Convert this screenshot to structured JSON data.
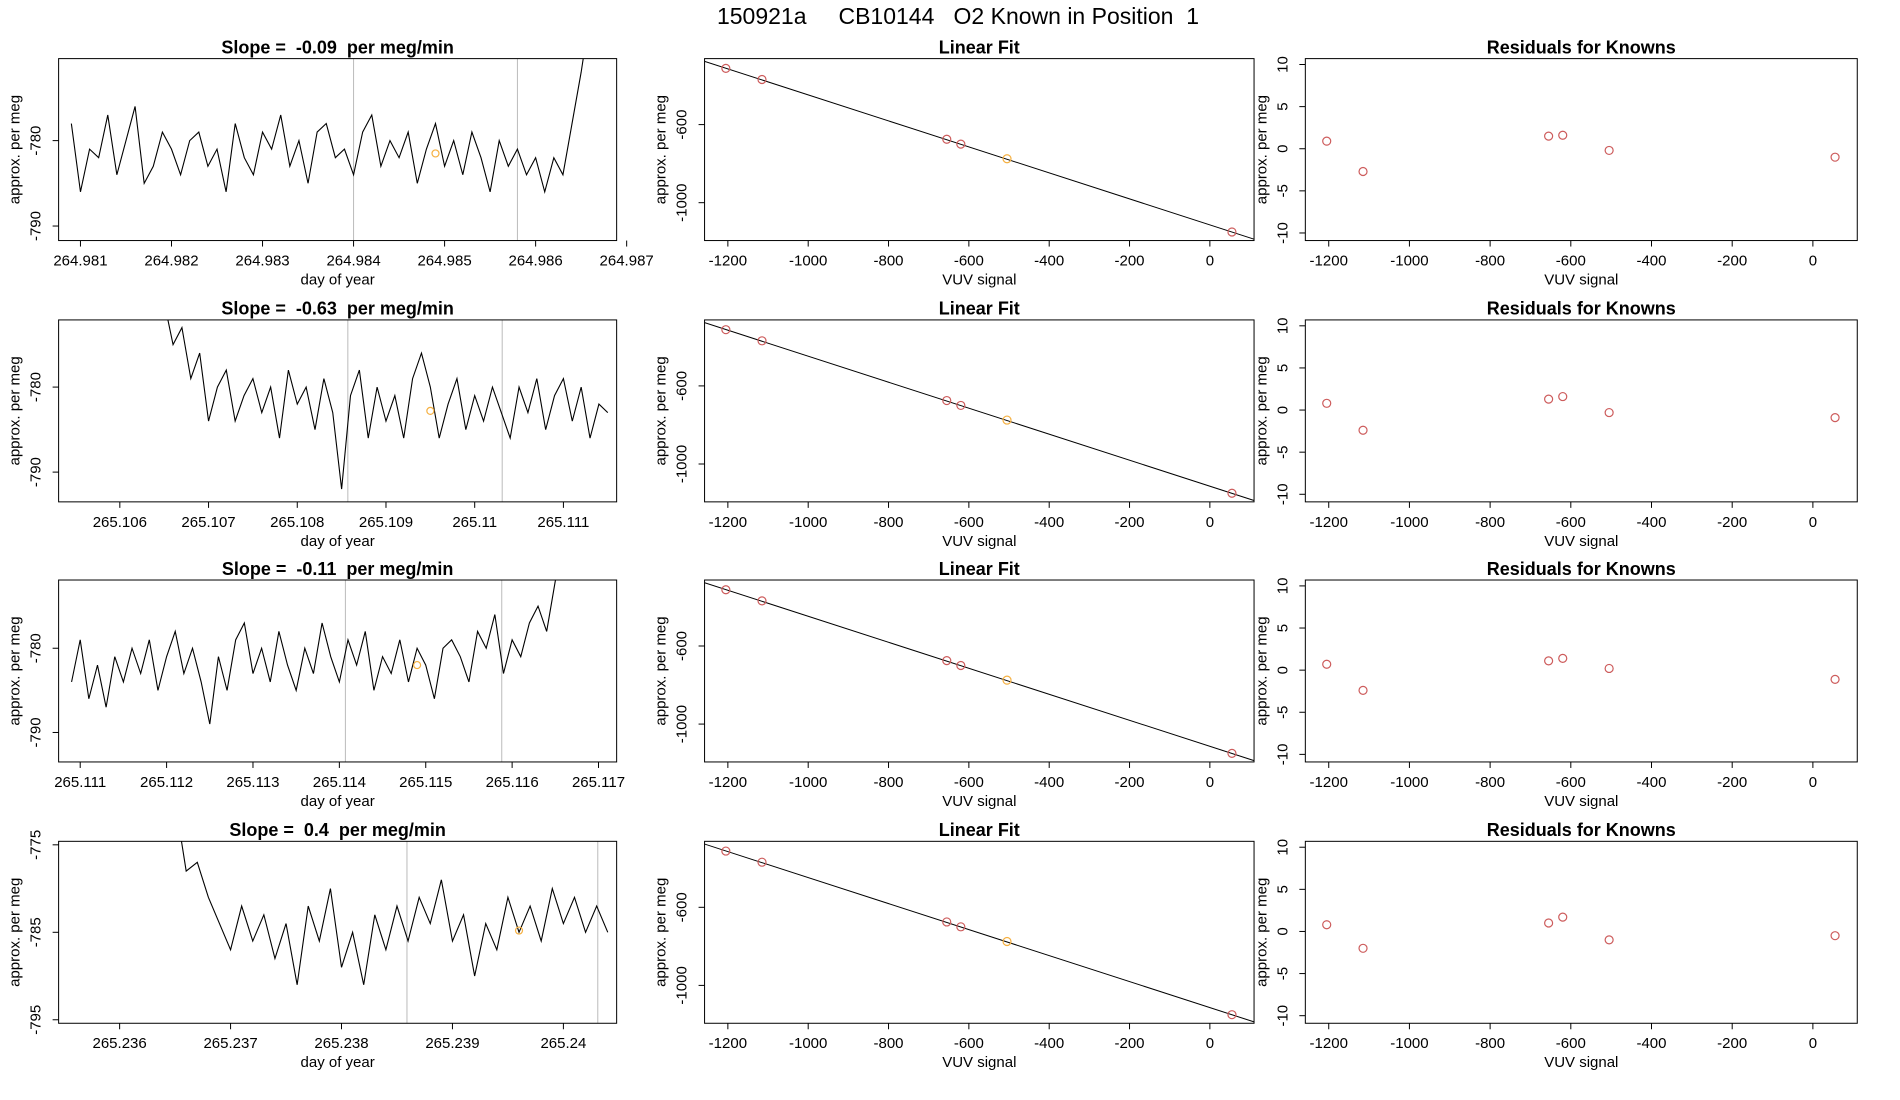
{
  "title": "150921a     CB10144   O2 Known in Position  1",
  "chart_data": [
    {
      "type": "line",
      "title": "Slope =  -0.09  per meg/min",
      "xlabel": "day of year",
      "ylabel": "approx. per meg",
      "color": "#000000",
      "vline_color": "#bbbbbb",
      "highlight_color": "#f5b041",
      "xlim": [
        264.98076,
        264.98689
      ],
      "ylim": [
        -791.7,
        -770.4
      ],
      "xticks": [
        264.981,
        264.982,
        264.983,
        264.984,
        264.985,
        264.986,
        264.987
      ],
      "yticks": [
        -790,
        -780
      ],
      "x": [
        264.9809,
        264.981,
        264.9811,
        264.9812,
        264.9813,
        264.9814,
        264.9815,
        264.9816,
        264.9817,
        264.9818,
        264.9819,
        264.982,
        264.9821,
        264.9822,
        264.9823,
        264.9824,
        264.9825,
        264.9826,
        264.9827,
        264.9828,
        264.9829,
        264.983,
        264.9831,
        264.9832,
        264.9833,
        264.9834,
        264.9835,
        264.9836,
        264.9837,
        264.9838,
        264.9839,
        264.984,
        264.9841,
        264.9842,
        264.9843,
        264.9844,
        264.9845,
        264.9846,
        264.9847,
        264.9848,
        264.9849,
        264.985,
        264.9851,
        264.9852,
        264.9853,
        264.9854,
        264.9855,
        264.9856,
        264.9857,
        264.9858,
        264.9859,
        264.986,
        264.9861,
        264.9862,
        264.9863,
        264.9864,
        264.9865,
        264.9866
      ],
      "values": [
        -778,
        -786,
        -781,
        -782,
        -777,
        -784,
        -780,
        -776,
        -785,
        -783,
        -779,
        -781,
        -784,
        -780,
        -779,
        -783,
        -781,
        -786,
        -778,
        -782,
        -784,
        -779,
        -781,
        -777,
        -783,
        -780,
        -785,
        -779,
        -778,
        -782,
        -781,
        -784,
        -779,
        -777,
        -783,
        -780,
        -782,
        -779,
        -785,
        -781,
        -778,
        -783,
        -780,
        -784,
        -779,
        -782,
        -786,
        -780,
        -783,
        -781,
        -784,
        -782,
        -786,
        -782,
        -784,
        -778,
        -772,
        -765
      ],
      "vlines": [
        264.984,
        264.9858
      ],
      "highlight": {
        "x": 264.9849,
        "y": -781.5
      }
    },
    {
      "type": "scatter",
      "title": "Linear Fit",
      "xlabel": "VUV signal",
      "ylabel": "approx. per meg",
      "xlim": [
        -1258,
        110
      ],
      "ylim": [
        -1194,
        -262
      ],
      "xticks": [
        -1200,
        -1000,
        -800,
        -600,
        -400,
        -200,
        0
      ],
      "yticks": [
        -1000,
        -600
      ],
      "x": [
        -1205,
        -1115,
        -655,
        -620,
        -505,
        55
      ],
      "values": [
        -312,
        -369,
        -675,
        -700,
        -775,
        -1150
      ],
      "colors": [
        "#cd5c5c",
        "#cd5c5c",
        "#cd5c5c",
        "#cd5c5c",
        "#f5b041",
        "#cd5c5c"
      ],
      "fit": {
        "color": "#000000",
        "x": [
          -1258,
          110
        ],
        "values": [
          -276,
          -1187
        ]
      }
    },
    {
      "type": "scatter",
      "title": "Residuals for Knowns",
      "xlabel": "VUV signal",
      "ylabel": "approx. per meg",
      "xlim": [
        -1258,
        110
      ],
      "ylim": [
        -10.9,
        10.7
      ],
      "xticks": [
        -1200,
        -1000,
        -800,
        -600,
        -400,
        -200,
        0
      ],
      "yticks": [
        -10,
        -5,
        0,
        5,
        10
      ],
      "x": [
        -1205,
        -1115,
        -655,
        -620,
        -505,
        55
      ],
      "values": [
        0.9,
        -2.7,
        1.5,
        1.6,
        -0.2,
        -1.0
      ],
      "colors": [
        "#cd5c5c",
        "#cd5c5c",
        "#cd5c5c",
        "#cd5c5c",
        "#cd5c5c",
        "#cd5c5c"
      ]
    },
    {
      "type": "line",
      "title": "Slope =  -0.63  per meg/min",
      "xlabel": "day of year",
      "ylabel": "approx. per meg",
      "color": "#000000",
      "vline_color": "#bbbbbb",
      "highlight_color": "#f5b041",
      "xlim": [
        265.10531,
        265.1116
      ],
      "ylim": [
        -793.5,
        -772.1
      ],
      "xticks": [
        265.106,
        265.107,
        265.108,
        265.109,
        265.11,
        265.111
      ],
      "yticks": [
        -790,
        -780
      ],
      "x": [
        265.1065,
        265.1066,
        265.1067,
        265.1068,
        265.1069,
        265.107,
        265.1071,
        265.1072,
        265.1073,
        265.1074,
        265.1075,
        265.1076,
        265.1077,
        265.1078,
        265.1079,
        265.108,
        265.1081,
        265.1082,
        265.1083,
        265.1084,
        265.1085,
        265.1086,
        265.1087,
        265.1088,
        265.1089,
        265.109,
        265.1091,
        265.1092,
        265.1093,
        265.1094,
        265.1095,
        265.1096,
        265.1097,
        265.1098,
        265.1099,
        265.11,
        265.1101,
        265.1102,
        265.1103,
        265.1104,
        265.1105,
        265.1106,
        265.1107,
        265.1108,
        265.1109,
        265.111,
        265.1111,
        265.1112,
        265.1113,
        265.1114,
        265.1115
      ],
      "values": [
        -770,
        -775,
        -773,
        -779,
        -776,
        -784,
        -780,
        -778,
        -784,
        -781,
        -779,
        -783,
        -780,
        -786,
        -778,
        -782,
        -780,
        -785,
        -779,
        -783,
        -792,
        -781,
        -778,
        -786,
        -780,
        -784,
        -781,
        -786,
        -779,
        -776,
        -780,
        -786,
        -782,
        -779,
        -785,
        -781,
        -784,
        -780,
        -783,
        -786,
        -780,
        -783,
        -779,
        -785,
        -781,
        -779,
        -784,
        -780,
        -786,
        -782,
        -783
      ],
      "vlines": [
        265.10857,
        265.11031
      ],
      "highlight": {
        "x": 265.1095,
        "y": -782.8
      }
    },
    {
      "type": "scatter",
      "title": "Linear Fit",
      "xlabel": "VUV signal",
      "ylabel": "approx. per meg",
      "xlim": [
        -1258,
        110
      ],
      "ylim": [
        -1194,
        -262
      ],
      "xticks": [
        -1200,
        -1000,
        -800,
        -600,
        -400,
        -200,
        0
      ],
      "yticks": [
        -1000,
        -600
      ],
      "x": [
        -1205,
        -1115,
        -655,
        -620,
        -505,
        55
      ],
      "values": [
        -312,
        -369,
        -675,
        -700,
        -775,
        -1150
      ],
      "colors": [
        "#cd5c5c",
        "#cd5c5c",
        "#cd5c5c",
        "#cd5c5c",
        "#f5b041",
        "#cd5c5c"
      ],
      "fit": {
        "color": "#000000",
        "x": [
          -1258,
          110
        ],
        "values": [
          -276,
          -1187
        ]
      }
    },
    {
      "type": "scatter",
      "title": "Residuals for Knowns",
      "xlabel": "VUV signal",
      "ylabel": "approx. per meg",
      "xlim": [
        -1258,
        110
      ],
      "ylim": [
        -10.9,
        10.7
      ],
      "xticks": [
        -1200,
        -1000,
        -800,
        -600,
        -400,
        -200,
        0
      ],
      "yticks": [
        -10,
        -5,
        0,
        5,
        10
      ],
      "x": [
        -1205,
        -1115,
        -655,
        -620,
        -505,
        55
      ],
      "values": [
        0.8,
        -2.4,
        1.3,
        1.6,
        -0.3,
        -0.9
      ],
      "colors": [
        "#cd5c5c",
        "#cd5c5c",
        "#cd5c5c",
        "#cd5c5c",
        "#cd5c5c",
        "#cd5c5c"
      ]
    },
    {
      "type": "line",
      "title": "Slope =  -0.11  per meg/min",
      "xlabel": "day of year",
      "ylabel": "approx. per meg",
      "color": "#000000",
      "vline_color": "#bbbbbb",
      "highlight_color": "#f5b041",
      "xlim": [
        265.11075,
        265.11721
      ],
      "ylim": [
        -793.5,
        -771.9
      ],
      "xticks": [
        265.111,
        265.112,
        265.113,
        265.114,
        265.115,
        265.116,
        265.117
      ],
      "yticks": [
        -790,
        -780
      ],
      "x": [
        265.1109,
        265.111,
        265.1111,
        265.1112,
        265.1113,
        265.1114,
        265.1115,
        265.1116,
        265.1117,
        265.1118,
        265.1119,
        265.112,
        265.1121,
        265.1122,
        265.1123,
        265.1124,
        265.1125,
        265.1126,
        265.1127,
        265.1128,
        265.1129,
        265.113,
        265.1131,
        265.1132,
        265.1133,
        265.1134,
        265.1135,
        265.1136,
        265.1137,
        265.1138,
        265.1139,
        265.114,
        265.1141,
        265.1142,
        265.1143,
        265.1144,
        265.1145,
        265.1146,
        265.1147,
        265.1148,
        265.1149,
        265.115,
        265.1151,
        265.1152,
        265.1153,
        265.1154,
        265.1155,
        265.1156,
        265.1157,
        265.1158,
        265.1159,
        265.116,
        265.1161,
        265.1162,
        265.1163,
        265.1164,
        265.1165,
        265.1166
      ],
      "values": [
        -784,
        -779,
        -786,
        -782,
        -787,
        -781,
        -784,
        -780,
        -783,
        -779,
        -785,
        -781,
        -778,
        -783,
        -780,
        -784,
        -789,
        -781,
        -785,
        -779,
        -777,
        -783,
        -780,
        -784,
        -778,
        -782,
        -785,
        -780,
        -783,
        -777,
        -781,
        -784,
        -779,
        -782,
        -778,
        -785,
        -781,
        -783,
        -779,
        -784,
        -780,
        -782,
        -786,
        -780,
        -779,
        -781,
        -784,
        -778,
        -780,
        -776,
        -783,
        -779,
        -781,
        -777,
        -775,
        -778,
        -772,
        -765
      ],
      "vlines": [
        265.11407,
        265.11588
      ],
      "highlight": {
        "x": 265.1149,
        "y": -782
      }
    },
    {
      "type": "scatter",
      "title": "Linear Fit",
      "xlabel": "VUV signal",
      "ylabel": "approx. per meg",
      "xlim": [
        -1258,
        110
      ],
      "ylim": [
        -1194,
        -262
      ],
      "xticks": [
        -1200,
        -1000,
        -800,
        -600,
        -400,
        -200,
        0
      ],
      "yticks": [
        -1000,
        -600
      ],
      "x": [
        -1205,
        -1115,
        -655,
        -620,
        -505,
        55
      ],
      "values": [
        -312,
        -369,
        -675,
        -700,
        -775,
        -1150
      ],
      "colors": [
        "#cd5c5c",
        "#cd5c5c",
        "#cd5c5c",
        "#cd5c5c",
        "#f5b041",
        "#cd5c5c"
      ],
      "fit": {
        "color": "#000000",
        "x": [
          -1258,
          110
        ],
        "values": [
          -276,
          -1187
        ]
      }
    },
    {
      "type": "scatter",
      "title": "Residuals for Knowns",
      "xlabel": "VUV signal",
      "ylabel": "approx. per meg",
      "xlim": [
        -1258,
        110
      ],
      "ylim": [
        -10.9,
        10.7
      ],
      "xticks": [
        -1200,
        -1000,
        -800,
        -600,
        -400,
        -200,
        0
      ],
      "yticks": [
        -10,
        -5,
        0,
        5,
        10
      ],
      "x": [
        -1205,
        -1115,
        -655,
        -620,
        -505,
        55
      ],
      "values": [
        0.7,
        -2.4,
        1.1,
        1.4,
        0.2,
        -1.1
      ],
      "colors": [
        "#cd5c5c",
        "#cd5c5c",
        "#cd5c5c",
        "#cd5c5c",
        "#cd5c5c",
        "#cd5c5c"
      ]
    },
    {
      "type": "line",
      "title": "Slope =  0.4  per meg/min",
      "xlabel": "day of year",
      "ylabel": "approx. per meg",
      "color": "#000000",
      "vline_color": "#bbbbbb",
      "highlight_color": "#f5b041",
      "xlim": [
        265.23545,
        265.24048
      ],
      "ylim": [
        -795.4,
        -774.6
      ],
      "xticks": [
        265.236,
        265.237,
        265.238,
        265.239,
        265.24
      ],
      "yticks": [
        -795,
        -785,
        -775
      ],
      "x": [
        265.2365,
        265.2366,
        265.2367,
        265.2368,
        265.2369,
        265.237,
        265.2371,
        265.2372,
        265.2373,
        265.2374,
        265.2375,
        265.2376,
        265.2377,
        265.2378,
        265.2379,
        265.238,
        265.2381,
        265.2382,
        265.2383,
        265.2384,
        265.2385,
        265.2386,
        265.2387,
        265.2388,
        265.2389,
        265.239,
        265.2391,
        265.2392,
        265.2393,
        265.2394,
        265.2395,
        265.2396,
        265.2397,
        265.2398,
        265.2399,
        265.24,
        265.2401,
        265.2402,
        265.2403,
        265.2404
      ],
      "values": [
        -770,
        -778,
        -777,
        -781,
        -784,
        -787,
        -782,
        -786,
        -783,
        -788,
        -784,
        -791,
        -782,
        -786,
        -780,
        -789,
        -785,
        -791,
        -783,
        -787,
        -782,
        -786,
        -781,
        -784,
        -779,
        -786,
        -783,
        -790,
        -784,
        -787,
        -781,
        -785,
        -782,
        -786,
        -780,
        -784,
        -781,
        -785,
        -782,
        -785
      ],
      "vlines": [
        265.23859,
        265.24031
      ],
      "highlight": {
        "x": 265.2396,
        "y": -784.8
      }
    },
    {
      "type": "scatter",
      "title": "Linear Fit",
      "xlabel": "VUV signal",
      "ylabel": "approx. per meg",
      "xlim": [
        -1258,
        110
      ],
      "ylim": [
        -1194,
        -262
      ],
      "xticks": [
        -1200,
        -1000,
        -800,
        -600,
        -400,
        -200,
        0
      ],
      "yticks": [
        -1000,
        -600
      ],
      "x": [
        -1205,
        -1115,
        -655,
        -620,
        -505,
        55
      ],
      "values": [
        -312,
        -369,
        -675,
        -700,
        -775,
        -1150
      ],
      "colors": [
        "#cd5c5c",
        "#cd5c5c",
        "#cd5c5c",
        "#cd5c5c",
        "#f5b041",
        "#cd5c5c"
      ],
      "fit": {
        "color": "#000000",
        "x": [
          -1258,
          110
        ],
        "values": [
          -276,
          -1187
        ]
      }
    },
    {
      "type": "scatter",
      "title": "Residuals for Knowns",
      "xlabel": "VUV signal",
      "ylabel": "approx. per meg",
      "xlim": [
        -1258,
        110
      ],
      "ylim": [
        -10.9,
        10.7
      ],
      "xticks": [
        -1200,
        -1000,
        -800,
        -600,
        -400,
        -200,
        0
      ],
      "yticks": [
        -10,
        -5,
        0,
        5,
        10
      ],
      "x": [
        -1205,
        -1115,
        -655,
        -620,
        -505,
        55
      ],
      "values": [
        0.8,
        -2.0,
        1.0,
        1.7,
        -1.0,
        -0.5
      ],
      "colors": [
        "#cd5c5c",
        "#cd5c5c",
        "#cd5c5c",
        "#cd5c5c",
        "#cd5c5c",
        "#cd5c5c"
      ]
    }
  ]
}
